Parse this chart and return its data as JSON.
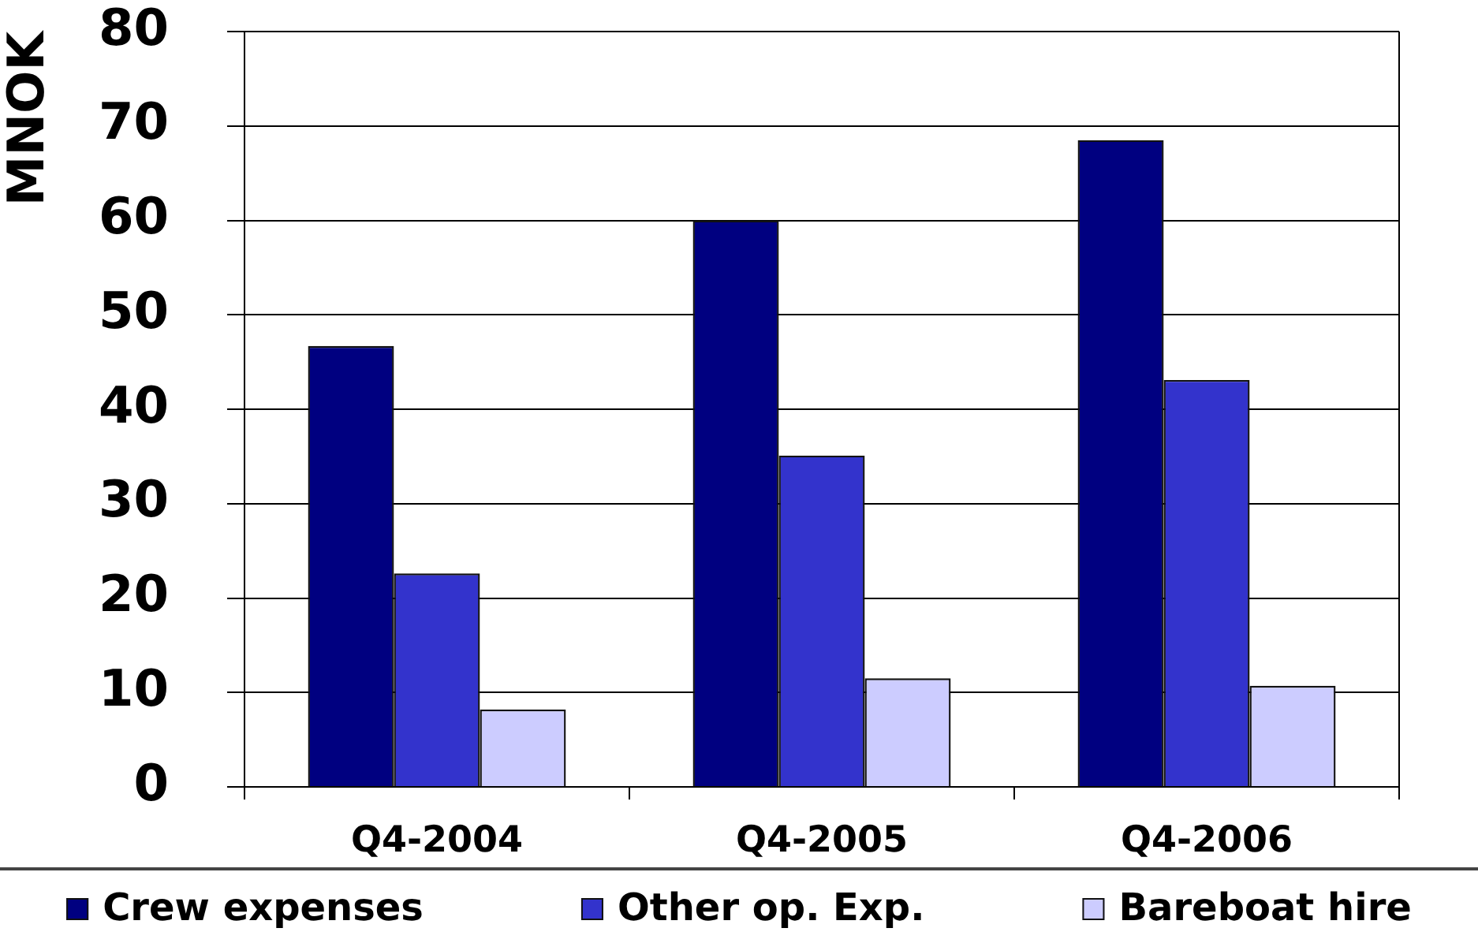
{
  "chart_data": {
    "type": "bar",
    "ylabel": "MNOK",
    "categories": [
      "Q4-2004",
      "Q4-2005",
      "Q4-2006"
    ],
    "series": [
      {
        "name": "Crew expenses",
        "color": "#000080",
        "values": [
          46.7,
          60,
          68.5
        ]
      },
      {
        "name": "Other op. Exp.",
        "color": "#3333cc",
        "values": [
          22.6,
          35.1,
          43.1
        ]
      },
      {
        "name": "Bareboat hire",
        "color": "#ccccff",
        "values": [
          8.2,
          11.5,
          10.7
        ]
      }
    ],
    "ylim": [
      0,
      80
    ],
    "yticks": [
      0,
      10,
      20,
      30,
      40,
      50,
      60,
      70,
      80
    ],
    "grid": "y",
    "legend": "bottom"
  }
}
